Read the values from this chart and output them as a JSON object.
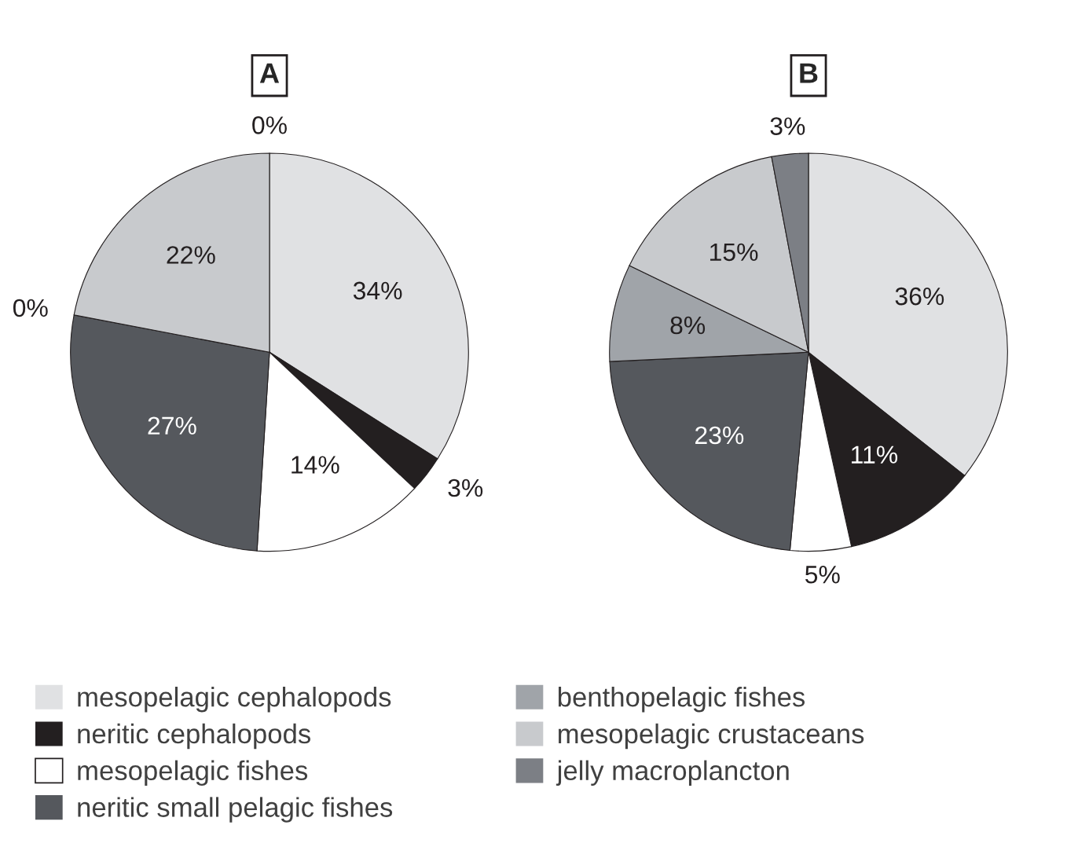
{
  "chart_data": [
    {
      "type": "pie",
      "title": "A",
      "legend": "bottom",
      "categories": [
        "mesopelagic cephalopods",
        "neritic cephalopods",
        "mesopelagic fishes",
        "neritic small pelagic fishes",
        "benthopelagic fishes",
        "mesopelagic crustaceans",
        "jelly macroplancton"
      ],
      "values": [
        34,
        3,
        14,
        27,
        0,
        22,
        0
      ],
      "value_labels": [
        "34%",
        "3%",
        "14%",
        "27%",
        "0%",
        "22%",
        "0%"
      ],
      "colors": [
        "#e0e1e3",
        "#231f20",
        "#ffffff",
        "#55585d",
        "#a0a4a9",
        "#c8cacd",
        "#7c7f85"
      ]
    },
    {
      "type": "pie",
      "title": "B",
      "categories": [
        null,
        null,
        null,
        null,
        null,
        null,
        null
      ],
      "values": [
        36,
        11,
        5,
        23,
        8,
        15,
        3
      ],
      "value_labels": [
        "36%",
        "11%",
        "5%",
        "23%",
        "8%",
        "15%",
        "3%"
      ],
      "colors": [
        "#e0e1e3",
        "#231f20",
        "#ffffff",
        "#55585d",
        "#a0a4a9",
        "#c8cacd",
        "#7c7f85"
      ]
    }
  ]
}
